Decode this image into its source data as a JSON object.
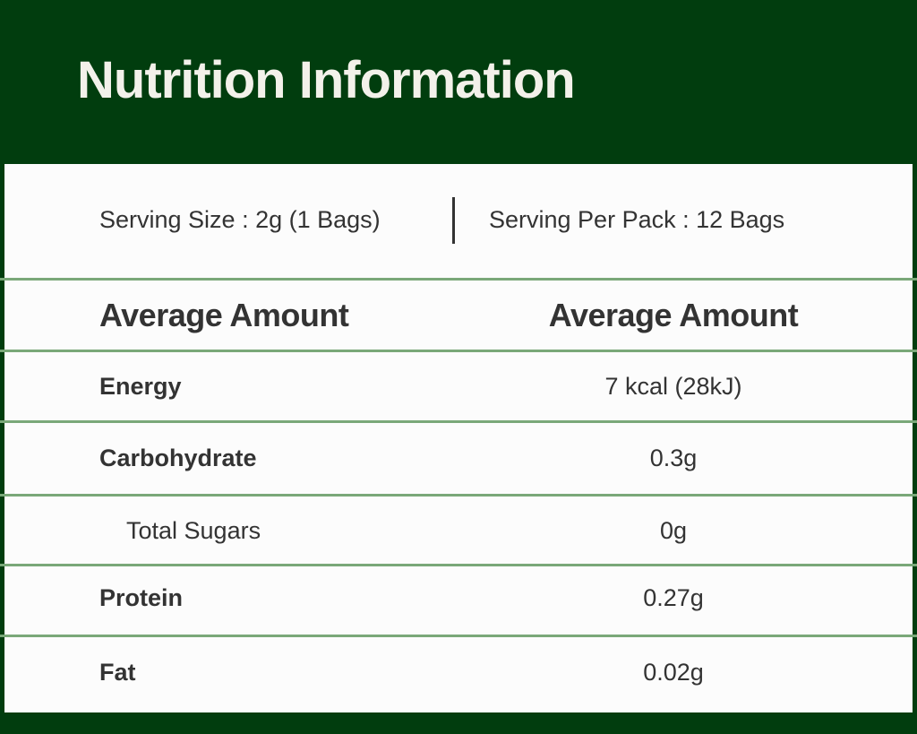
{
  "title": "Nutrition Information",
  "serving_size": "Serving Size : 2g (1 Bags)",
  "serving_per_pack": "Serving Per Pack : 12 Bags",
  "header": {
    "left": "Average Amount",
    "right": "Average Amount"
  },
  "rows": [
    {
      "label": "Energy",
      "value": "7 kcal (28kJ)"
    },
    {
      "label": "Carbohydrate",
      "value": "0.3g"
    },
    {
      "label": "Total Sugars",
      "value": "0g"
    },
    {
      "label": "Protein",
      "value": "0.27g"
    },
    {
      "label": "Fat",
      "value": "0.02g"
    }
  ],
  "colors": {
    "background": "#013d0e",
    "divider": "#7aa879",
    "card": "#fcfcfc"
  }
}
